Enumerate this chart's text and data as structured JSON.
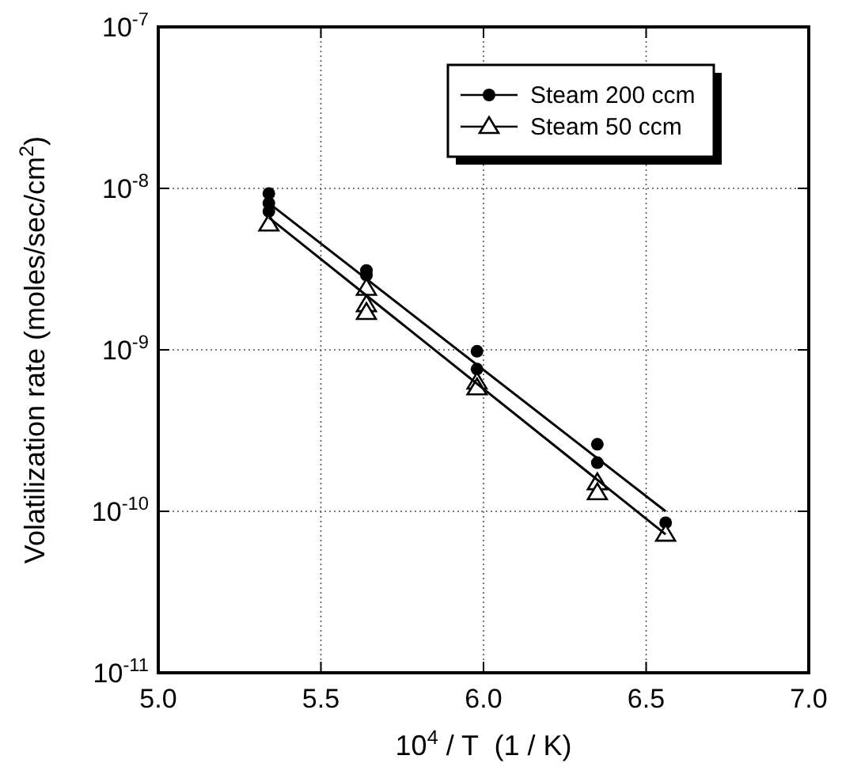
{
  "chart_data": {
    "type": "scatter",
    "xlabel": "10$^{4}$ / T  (1 / K)",
    "ylabel": "Volatilization rate (moles/sec/cm$^{2}$)",
    "xlim": [
      5.0,
      7.0
    ],
    "xticks": [
      {
        "value": 5.0,
        "label": "5.0"
      },
      {
        "value": 5.5,
        "label": "5.5"
      },
      {
        "value": 6.0,
        "label": "6.0"
      },
      {
        "value": 6.5,
        "label": "6.5"
      },
      {
        "value": 7.0,
        "label": "7.0"
      }
    ],
    "ylim": [
      1e-11,
      1e-07
    ],
    "yticks": [
      {
        "value": 1e-11,
        "label": "10$^{-11}$"
      },
      {
        "value": 1e-10,
        "label": "10$^{-10}$"
      },
      {
        "value": 1e-09,
        "label": "10$^{-9}$"
      },
      {
        "value": 1e-08,
        "label": "10$^{-8}$"
      },
      {
        "value": 1e-07,
        "label": "10$^{-7}$"
      }
    ],
    "log": "y",
    "grid": true,
    "legend": "top right",
    "series": [
      {
        "name": "Steam 200 ccm",
        "marker": "circle",
        "color": "#000000",
        "x": [
          5.34,
          5.34,
          5.34,
          5.64,
          5.64,
          5.98,
          5.98,
          6.35,
          6.35,
          6.56
        ],
        "values": [
          9.3e-09,
          8.1e-09,
          7.2e-09,
          3.1e-09,
          2.9e-09,
          9.8e-10,
          7.6e-10,
          2.6e-10,
          2e-10,
          8.5e-11
        ]
      },
      {
        "name": "Steam 50 ccm",
        "marker": "triangle",
        "color": "#000000",
        "x": [
          5.34,
          5.64,
          5.64,
          5.64,
          5.98,
          5.98,
          6.35,
          6.35,
          6.56
        ],
        "values": [
          6e-09,
          2.4e-09,
          1.9e-09,
          1.7e-09,
          6.3e-10,
          5.8e-10,
          1.5e-10,
          1.3e-10,
          7.2e-11
        ]
      },
      {
        "type": "line",
        "color": "#000000",
        "x": [
          5.34,
          6.56
        ],
        "values": [
          8.1e-09,
          1e-10
        ]
      },
      {
        "type": "line",
        "color": "#000000",
        "x": [
          5.34,
          6.56
        ],
        "values": [
          6.6e-09,
          7.2e-11
        ]
      }
    ]
  }
}
